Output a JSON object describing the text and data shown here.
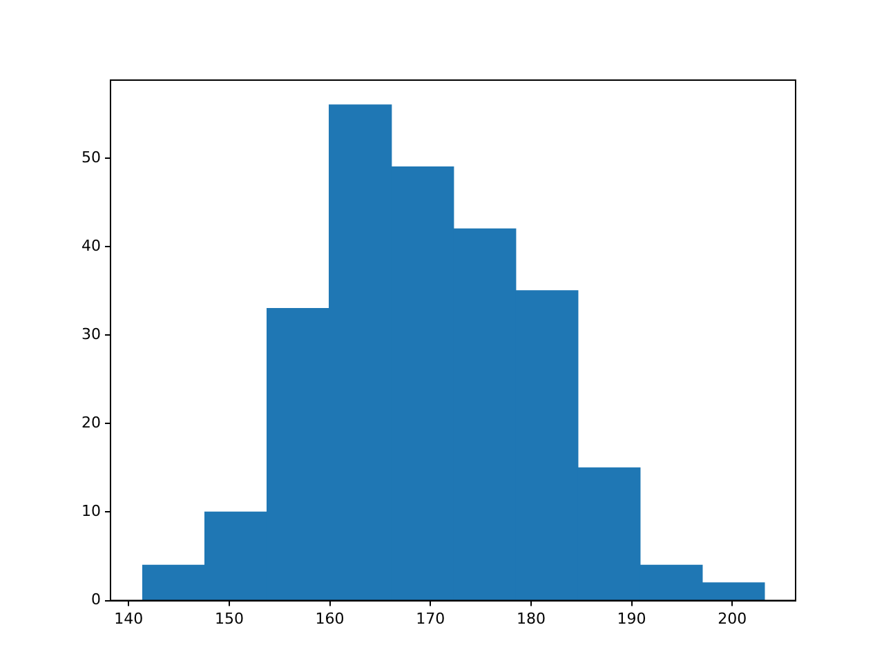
{
  "chart_data": {
    "type": "histogram",
    "bins": [
      141.4,
      147.58,
      153.76,
      159.94,
      166.12,
      172.3,
      178.48,
      184.66,
      190.84,
      197.02,
      203.2
    ],
    "values": [
      4,
      10,
      33,
      56,
      49,
      42,
      35,
      15,
      4,
      2
    ],
    "color": "#1f77b4",
    "xlim": [
      138.2,
      206.3
    ],
    "xticks": [
      140,
      150,
      160,
      170,
      180,
      190,
      200
    ],
    "ylim": [
      0,
      58.8
    ],
    "yticks": [
      0,
      10,
      20,
      30,
      40,
      50
    ],
    "grid": false,
    "legend": false
  }
}
